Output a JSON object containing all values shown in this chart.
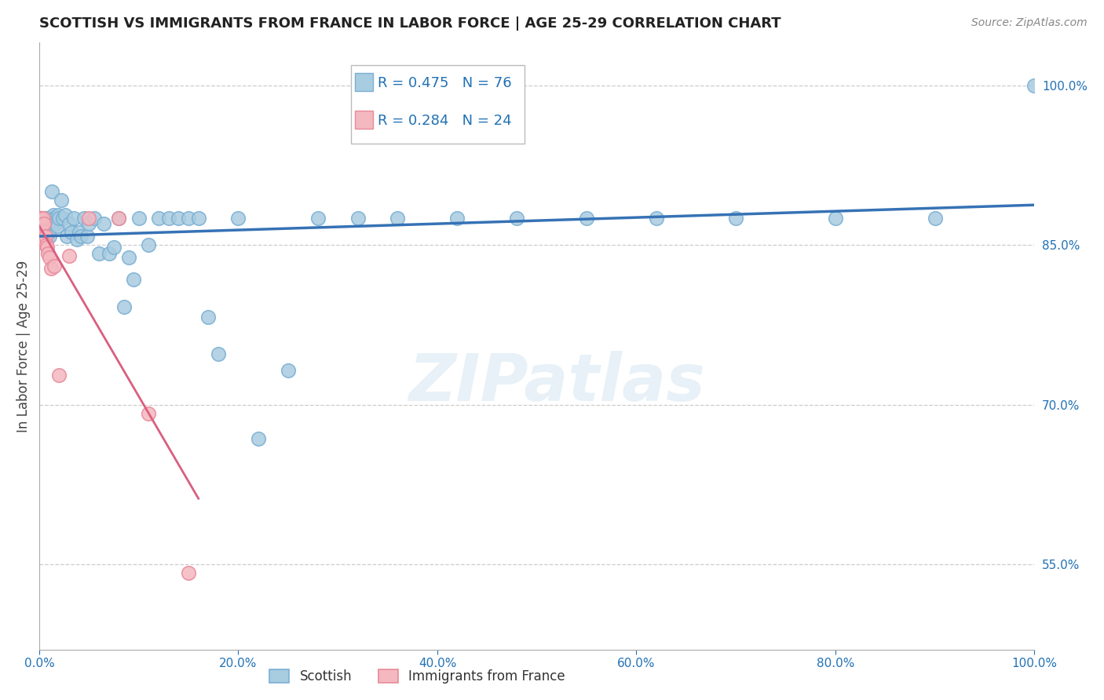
{
  "title": "SCOTTISH VS IMMIGRANTS FROM FRANCE IN LABOR FORCE | AGE 25-29 CORRELATION CHART",
  "source": "Source: ZipAtlas.com",
  "ylabel": "In Labor Force | Age 25-29",
  "ylabel_right_labels": [
    "100.0%",
    "85.0%",
    "70.0%",
    "55.0%"
  ],
  "ylabel_right_values": [
    1.0,
    0.85,
    0.7,
    0.55
  ],
  "watermark_text": "ZIPatlas",
  "legend_blue_label": "Scottish",
  "legend_pink_label": "Immigrants from France",
  "r_blue": 0.475,
  "n_blue": 76,
  "r_pink": 0.284,
  "n_pink": 24,
  "blue_color": "#a8cce0",
  "pink_color": "#f4b8c0",
  "blue_edge_color": "#7bafd4",
  "pink_edge_color": "#e88a9a",
  "line_blue_color": "#3672b5",
  "line_pink_color": "#d95f7f",
  "text_color": "#2171b5",
  "legend_text_color": "#333333",
  "background_color": "#ffffff",
  "grid_color": "#cccccc",
  "title_color": "#222222",
  "source_color": "#888888",
  "blue_x": [
    0.0,
    0.0,
    0.001,
    0.002,
    0.002,
    0.003,
    0.003,
    0.004,
    0.004,
    0.005,
    0.005,
    0.006,
    0.006,
    0.007,
    0.007,
    0.008,
    0.008,
    0.009,
    0.009,
    0.01,
    0.01,
    0.011,
    0.012,
    0.013,
    0.014,
    0.015,
    0.016,
    0.017,
    0.018,
    0.019,
    0.02,
    0.022,
    0.024,
    0.026,
    0.028,
    0.03,
    0.032,
    0.035,
    0.038,
    0.04,
    0.042,
    0.045,
    0.048,
    0.05,
    0.055,
    0.06,
    0.065,
    0.07,
    0.075,
    0.08,
    0.085,
    0.09,
    0.095,
    0.1,
    0.11,
    0.12,
    0.13,
    0.14,
    0.15,
    0.16,
    0.17,
    0.18,
    0.2,
    0.22,
    0.25,
    0.28,
    0.32,
    0.36,
    0.42,
    0.48,
    0.55,
    0.62,
    0.7,
    0.8,
    0.9,
    1.0
  ],
  "blue_y": [
    0.862,
    0.87,
    0.875,
    0.868,
    0.858,
    0.875,
    0.862,
    0.87,
    0.858,
    0.875,
    0.862,
    0.875,
    0.858,
    0.87,
    0.862,
    0.875,
    0.858,
    0.868,
    0.862,
    0.875,
    0.858,
    0.875,
    0.875,
    0.9,
    0.878,
    0.875,
    0.875,
    0.87,
    0.868,
    0.878,
    0.875,
    0.892,
    0.875,
    0.878,
    0.858,
    0.87,
    0.862,
    0.875,
    0.855,
    0.862,
    0.858,
    0.875,
    0.858,
    0.87,
    0.875,
    0.842,
    0.87,
    0.842,
    0.848,
    0.875,
    0.792,
    0.838,
    0.818,
    0.875,
    0.85,
    0.875,
    0.875,
    0.875,
    0.875,
    0.875,
    0.782,
    0.748,
    0.875,
    0.668,
    0.732,
    0.875,
    0.875,
    0.875,
    0.875,
    0.875,
    0.875,
    0.875,
    0.875,
    0.875,
    0.875,
    1.0
  ],
  "pink_x": [
    0.0,
    0.0,
    0.001,
    0.001,
    0.002,
    0.002,
    0.003,
    0.003,
    0.004,
    0.004,
    0.005,
    0.006,
    0.007,
    0.008,
    0.009,
    0.01,
    0.012,
    0.015,
    0.02,
    0.03,
    0.05,
    0.08,
    0.11,
    0.15
  ],
  "pink_y": [
    0.875,
    0.862,
    0.875,
    0.858,
    0.875,
    0.862,
    0.87,
    0.858,
    0.875,
    0.852,
    0.87,
    0.858,
    0.85,
    0.848,
    0.842,
    0.838,
    0.828,
    0.83,
    0.728,
    0.84,
    0.875,
    0.875,
    0.692,
    0.542
  ]
}
